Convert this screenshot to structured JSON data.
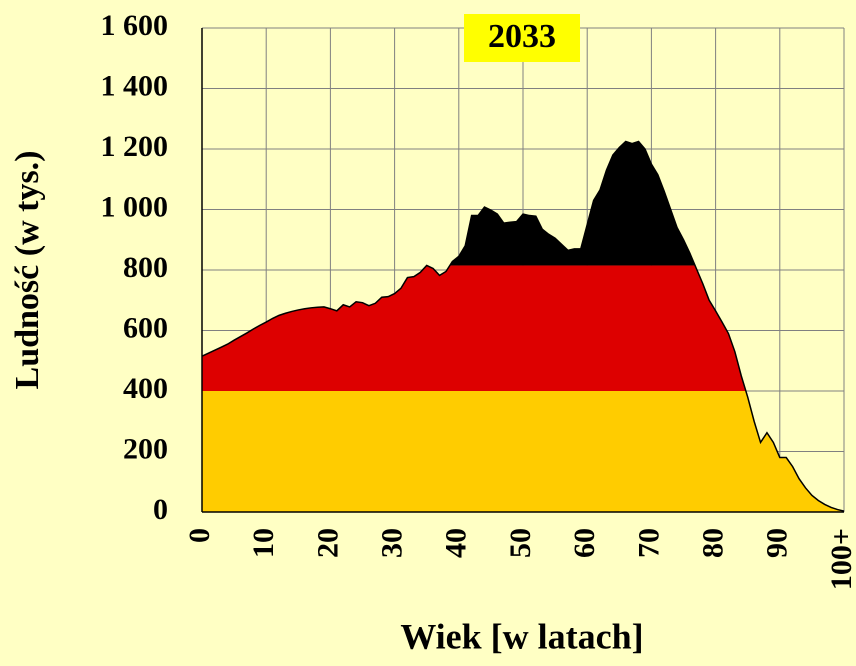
{
  "chart_data": {
    "type": "area",
    "title": "2033",
    "title_background": "#ffff00",
    "x_label": "Wiek [w latach]",
    "y_label": "Ludność (w tys.)",
    "x": [
      0,
      1,
      2,
      3,
      4,
      5,
      6,
      7,
      8,
      9,
      10,
      11,
      12,
      13,
      14,
      15,
      16,
      17,
      18,
      19,
      20,
      21,
      22,
      23,
      24,
      25,
      26,
      27,
      28,
      29,
      30,
      31,
      32,
      33,
      34,
      35,
      36,
      37,
      38,
      39,
      40,
      41,
      42,
      43,
      44,
      45,
      46,
      47,
      48,
      49,
      50,
      51,
      52,
      53,
      54,
      55,
      56,
      57,
      58,
      59,
      60,
      61,
      62,
      63,
      64,
      65,
      66,
      67,
      68,
      69,
      70,
      71,
      72,
      73,
      74,
      75,
      76,
      77,
      78,
      79,
      80,
      81,
      82,
      83,
      84,
      85,
      86,
      87,
      88,
      89,
      90,
      91,
      92,
      93,
      94,
      95,
      96,
      97,
      98,
      99,
      100
    ],
    "series": [
      {
        "color": "#000000",
        "values": [
          515,
          525,
          535,
          545,
          555,
          568,
          580,
          592,
          605,
          617,
          628,
          640,
          650,
          657,
          663,
          668,
          672,
          675,
          677,
          678,
          672,
          665,
          685,
          678,
          695,
          692,
          682,
          690,
          710,
          712,
          722,
          740,
          775,
          778,
          792,
          815,
          805,
          782,
          795,
          828,
          845,
          880,
          980,
          980,
          1008,
          998,
          985,
          955,
          958,
          960,
          985,
          980,
          978,
          935,
          918,
          905,
          885,
          865,
          870,
          870,
          950,
          1030,
          1065,
          1130,
          1180,
          1205,
          1225,
          1218,
          1225,
          1200,
          1150,
          1115,
          1060,
          1000,
          940,
          900,
          855,
          805,
          755,
          700,
          665,
          628,
          590,
          530,
          450,
          380,
          300,
          230,
          262,
          230,
          180,
          180,
          150,
          110,
          80,
          55,
          38,
          25,
          15,
          8,
          3
        ]
      }
    ],
    "fill_bands": [
      {
        "from": 0,
        "to": 400,
        "color": "#ffcc00"
      },
      {
        "from": 400,
        "to": 815,
        "color": "#dd0000"
      },
      {
        "from": 815,
        "to": 1600,
        "color": "#000000"
      }
    ],
    "xlim": [
      0,
      100
    ],
    "xticks": [
      0,
      10,
      20,
      30,
      40,
      50,
      60,
      70,
      80,
      90,
      {
        "value": 100,
        "label": "100+"
      }
    ],
    "ylim": [
      0,
      1600
    ],
    "yticks": [
      0,
      200,
      400,
      600,
      800,
      {
        "value": 1000,
        "label": "1 000"
      },
      {
        "value": 1200,
        "label": "1 200"
      },
      {
        "value": 1400,
        "label": "1 400"
      },
      {
        "value": 1600,
        "label": "1 600"
      }
    ],
    "grid": true
  }
}
